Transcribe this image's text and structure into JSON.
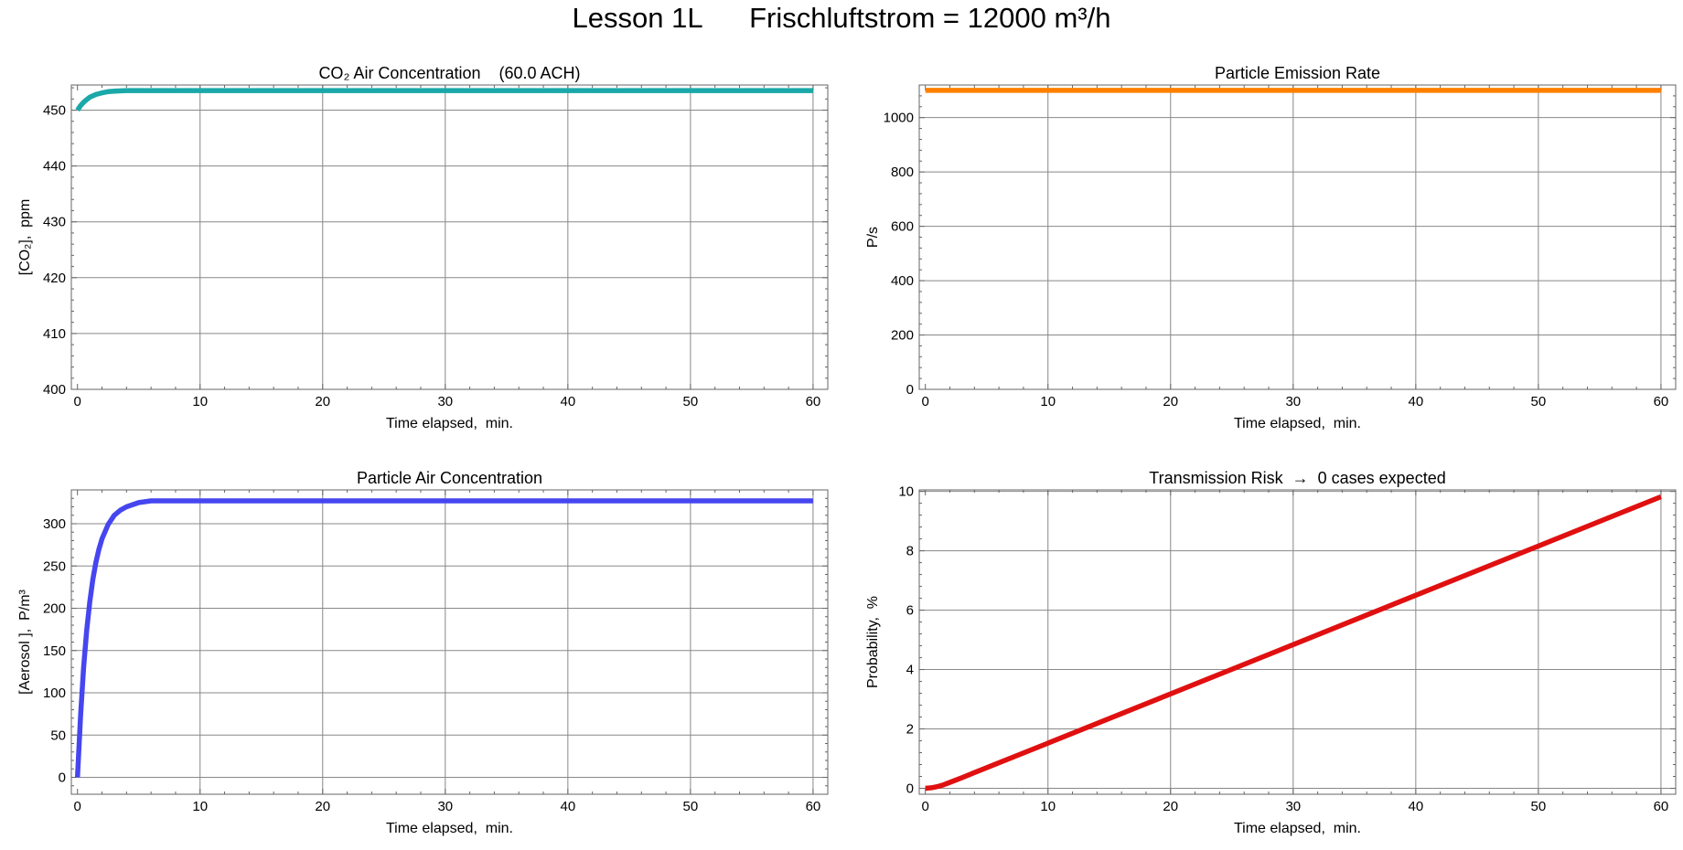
{
  "title": "Lesson 1L      Frischluftstrom = 12000 m³/h",
  "colors": {
    "grid": "#888888",
    "frame": "#666666"
  },
  "chart_data": [
    {
      "type": "line",
      "title": "CO₂ Air Concentration    (60.0 ACH)",
      "xlabel": "Time elapsed,  min.",
      "ylabel": "[CO₂],  ppm",
      "xlim": [
        -0.5,
        61.2
      ],
      "ylim": [
        400,
        454.5
      ],
      "xticks": [
        0,
        10,
        20,
        30,
        40,
        50,
        60
      ],
      "yticks": [
        400,
        410,
        420,
        430,
        440,
        450
      ],
      "grid": true,
      "color": "#1aa8a8",
      "x": [
        0,
        0.25,
        0.5,
        0.75,
        1,
        1.5,
        2,
        2.5,
        3,
        4,
        5,
        6,
        8,
        10,
        20,
        30,
        40,
        50,
        60
      ],
      "y": [
        450.0,
        450.8,
        451.4,
        451.9,
        452.3,
        452.8,
        453.1,
        453.3,
        453.4,
        453.5,
        453.5,
        453.5,
        453.5,
        453.5,
        453.5,
        453.5,
        453.5,
        453.5,
        453.5
      ]
    },
    {
      "type": "line",
      "title": "Particle Emission Rate",
      "xlabel": "Time elapsed,  min.",
      "ylabel": "P/s",
      "xlim": [
        -0.5,
        61.2
      ],
      "ylim": [
        0,
        1120
      ],
      "xticks": [
        0,
        10,
        20,
        30,
        40,
        50,
        60
      ],
      "yticks": [
        0,
        200,
        400,
        600,
        800,
        1000
      ],
      "grid": true,
      "color": "#ff8000",
      "x": [
        0,
        60
      ],
      "y": [
        1100,
        1100
      ]
    },
    {
      "type": "line",
      "title": "Particle Air Concentration",
      "xlabel": "Time elapsed,  min.",
      "ylabel": "[Aerosol ],  P/m³",
      "xlim": [
        -0.5,
        61.2
      ],
      "ylim": [
        -20,
        340
      ],
      "xticks": [
        0,
        10,
        20,
        30,
        40,
        50,
        60
      ],
      "yticks": [
        0,
        50,
        100,
        150,
        200,
        250,
        300
      ],
      "grid": true,
      "color": "#4646f0",
      "x": [
        0,
        0.25,
        0.5,
        0.75,
        1,
        1.25,
        1.5,
        1.75,
        2,
        2.5,
        3,
        3.5,
        4,
        5,
        6,
        8,
        10,
        20,
        30,
        40,
        50,
        60
      ],
      "y": [
        0,
        73,
        130,
        174,
        207,
        234,
        254,
        270,
        282,
        299,
        310,
        316,
        320,
        325,
        327,
        327,
        327,
        327,
        327,
        327,
        327,
        327
      ]
    },
    {
      "type": "line",
      "title": "Transmission Risk  →  0 cases expected",
      "xlabel": "Time elapsed,  min.",
      "ylabel": "Probability,  %",
      "xlim": [
        -0.5,
        61.2
      ],
      "ylim": [
        -0.2,
        10.05
      ],
      "xticks": [
        0,
        10,
        20,
        30,
        40,
        50,
        60
      ],
      "yticks": [
        0,
        2,
        4,
        6,
        8,
        10
      ],
      "grid": true,
      "color": "#e01010",
      "x": [
        0,
        0.5,
        1,
        1.5,
        2,
        3,
        4,
        6,
        10,
        20,
        30,
        40,
        50,
        60
      ],
      "y": [
        0,
        0.02,
        0.06,
        0.12,
        0.2,
        0.36,
        0.53,
        0.86,
        1.52,
        3.18,
        4.84,
        6.5,
        8.16,
        9.82
      ]
    }
  ]
}
